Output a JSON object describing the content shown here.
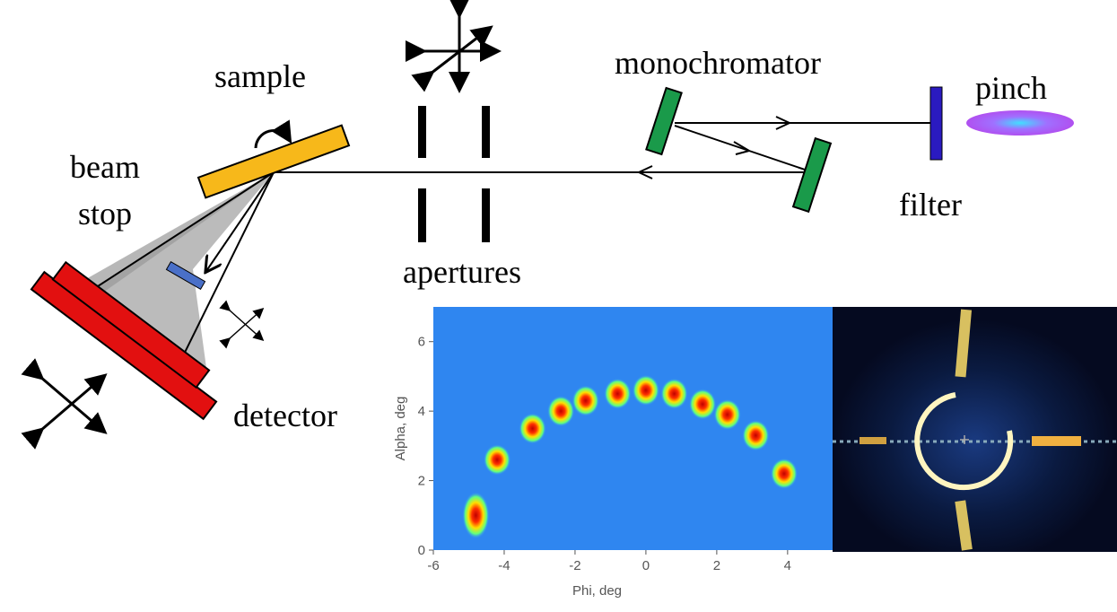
{
  "labels": {
    "sample": "sample",
    "beam": "beam",
    "stop": "stop",
    "apertures": "apertures",
    "monochromator": "monochromator",
    "pinch": "pinch",
    "filter": "filter",
    "detector": "detector"
  },
  "chart_data": {
    "type": "scatter",
    "xlabel": "Phi, deg",
    "ylabel": "Alpha, deg",
    "xlim": [
      -6,
      5.27
    ],
    "ylim": [
      0,
      7
    ],
    "xticks": [
      -6,
      -4,
      -2,
      0,
      2,
      4
    ],
    "yticks": [
      0,
      2,
      4,
      6
    ],
    "x": [
      -4.8,
      -4.2,
      -3.2,
      -2.4,
      -1.7,
      -0.8,
      0,
      0.8,
      1.6,
      2.3,
      3.1,
      3.9
    ],
    "values": [
      1.0,
      2.6,
      3.5,
      4.0,
      4.3,
      4.5,
      4.6,
      4.5,
      4.2,
      3.9,
      3.3,
      2.2
    ]
  }
}
